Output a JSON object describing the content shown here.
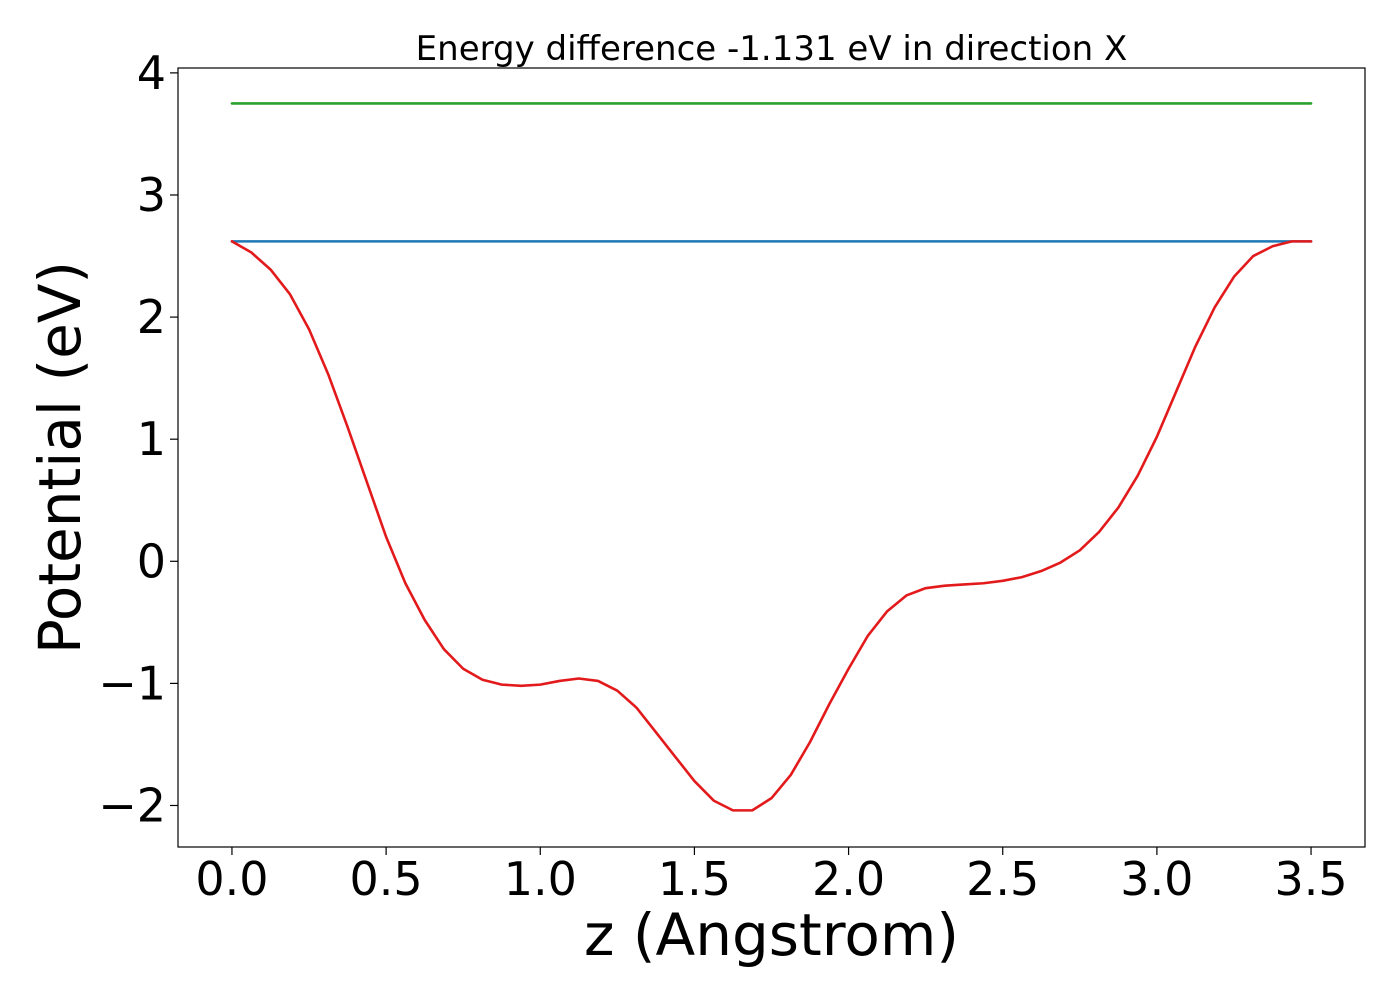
{
  "chart_data": {
    "type": "line",
    "title": "Energy difference -1.131 eV in direction X",
    "xlabel": "z (Angstrom)",
    "ylabel": "Potential (eV)",
    "xlim": [
      -0.175,
      3.675
    ],
    "ylim": [
      -2.34,
      4.04
    ],
    "xticks": [
      0.0,
      0.5,
      1.0,
      1.5,
      2.0,
      2.5,
      3.0,
      3.5
    ],
    "xtick_labels": [
      "0.0",
      "0.5",
      "1.0",
      "1.5",
      "2.0",
      "2.5",
      "3.0",
      "3.5"
    ],
    "yticks": [
      -2,
      -1,
      0,
      1,
      2,
      3,
      4
    ],
    "ytick_labels": [
      "−2",
      "−1",
      "0",
      "1",
      "2",
      "3",
      "4"
    ],
    "grid": false,
    "series": [
      {
        "color": "#2ca02c",
        "x": [
          0.0,
          3.5
        ],
        "y": [
          3.75,
          3.75
        ]
      },
      {
        "color": "#1f77b4",
        "x": [
          0.0,
          3.5
        ],
        "y": [
          2.62,
          2.62
        ]
      },
      {
        "color": "#e31a1c",
        "x": [
          0.0,
          0.0625,
          0.125,
          0.1875,
          0.25,
          0.3125,
          0.375,
          0.4375,
          0.5,
          0.5625,
          0.625,
          0.6875,
          0.75,
          0.8125,
          0.875,
          0.9375,
          1.0,
          1.0625,
          1.125,
          1.1875,
          1.25,
          1.3125,
          1.375,
          1.4375,
          1.5,
          1.5625,
          1.625,
          1.6875,
          1.75,
          1.8125,
          1.875,
          1.9375,
          2.0,
          2.0625,
          2.125,
          2.1875,
          2.25,
          2.3125,
          2.375,
          2.4375,
          2.5,
          2.5625,
          2.625,
          2.6875,
          2.75,
          2.8125,
          2.875,
          2.9375,
          3.0,
          3.0625,
          3.125,
          3.1875,
          3.25,
          3.3125,
          3.375,
          3.4375,
          3.5
        ],
        "y": [
          2.62,
          2.53,
          2.39,
          2.19,
          1.9,
          1.53,
          1.1,
          0.65,
          0.2,
          -0.18,
          -0.48,
          -0.72,
          -0.88,
          -0.97,
          -1.01,
          -1.02,
          -1.01,
          -0.98,
          -0.96,
          -0.98,
          -1.06,
          -1.2,
          -1.4,
          -1.6,
          -1.8,
          -1.96,
          -2.04,
          -2.04,
          -1.94,
          -1.75,
          -1.48,
          -1.17,
          -0.88,
          -0.61,
          -0.41,
          -0.28,
          -0.22,
          -0.2,
          -0.19,
          -0.18,
          -0.16,
          -0.13,
          -0.08,
          -0.01,
          0.09,
          0.24,
          0.44,
          0.7,
          1.02,
          1.39,
          1.76,
          2.08,
          2.33,
          2.5,
          2.58,
          2.62,
          2.62
        ]
      }
    ]
  }
}
